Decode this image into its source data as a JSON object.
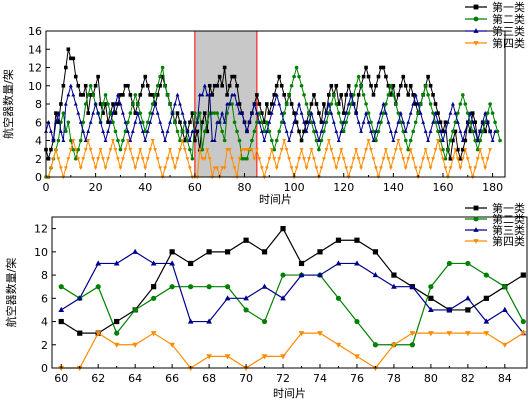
{
  "chart_data": [
    {
      "type": "line",
      "xlabel": "时间片",
      "ylabel": "航空器数量/架",
      "xlim": [
        0,
        185
      ],
      "ylim": [
        0,
        16
      ],
      "xticks": [
        0,
        20,
        40,
        60,
        80,
        100,
        120,
        140,
        160,
        180
      ],
      "yticks": [
        0,
        2,
        4,
        6,
        8,
        10,
        12,
        14,
        16
      ],
      "legend_position": "top-right",
      "highlight": {
        "x_range": [
          60,
          85
        ],
        "fill": "#c8c8c8",
        "edge": "#ff0000"
      },
      "x_start": 0,
      "series": [
        {
          "name": "第一类",
          "color": "#000000",
          "marker": "square",
          "values": [
            3,
            2,
            3,
            4,
            7,
            6,
            8,
            10,
            12,
            14,
            13,
            13,
            11,
            10,
            9,
            9,
            10,
            7,
            9,
            9,
            10,
            11,
            8,
            7,
            8,
            6,
            7,
            8,
            7,
            8,
            9,
            9,
            10,
            10,
            9,
            8,
            7,
            8,
            9,
            10,
            11,
            10,
            9,
            9,
            8,
            9,
            10,
            11,
            10,
            9,
            8,
            7,
            6,
            7,
            6,
            5,
            4,
            5,
            6,
            7,
            4,
            5,
            3,
            6,
            7,
            5,
            10,
            9,
            10,
            10,
            11,
            10,
            12,
            9,
            10,
            11,
            11,
            10,
            8,
            7,
            6,
            5,
            6,
            7,
            8,
            9,
            8,
            7,
            6,
            8,
            7,
            8,
            9,
            10,
            11,
            10,
            9,
            8,
            9,
            8,
            7,
            6,
            5,
            4,
            5,
            6,
            7,
            8,
            9,
            8,
            7,
            6,
            8,
            7,
            9,
            10,
            9,
            10,
            8,
            9,
            7,
            9,
            10,
            9,
            8,
            7,
            9,
            10,
            11,
            12,
            11,
            10,
            9,
            10,
            11,
            12,
            12,
            11,
            10,
            9,
            10,
            8,
            9,
            10,
            11,
            10,
            9,
            10,
            9,
            8,
            7,
            8,
            9,
            10,
            11,
            10,
            9,
            8,
            7,
            6,
            5,
            6,
            3,
            2,
            4,
            5,
            3,
            2,
            3,
            4,
            6,
            5,
            7,
            6,
            4,
            5,
            6,
            5,
            6,
            5
          ]
        },
        {
          "name": "第二类",
          "color": "#008000",
          "marker": "circle",
          "values": [
            0,
            0,
            1,
            2,
            3,
            4,
            6,
            7,
            5,
            6,
            4,
            3,
            2,
            3,
            4,
            6,
            8,
            9,
            10,
            9,
            8,
            7,
            6,
            8,
            9,
            8,
            7,
            6,
            5,
            4,
            3,
            4,
            5,
            6,
            7,
            8,
            9,
            8,
            7,
            6,
            5,
            6,
            7,
            8,
            9,
            10,
            11,
            12,
            10,
            9,
            8,
            7,
            6,
            5,
            4,
            5,
            6,
            4,
            3,
            2,
            7,
            6,
            7,
            3,
            5,
            6,
            7,
            7,
            7,
            7,
            6,
            5,
            4,
            7,
            8,
            8,
            6,
            5,
            4,
            2,
            2,
            2,
            3,
            4,
            5,
            6,
            7,
            6,
            5,
            6,
            5,
            4,
            3,
            4,
            5,
            6,
            7,
            8,
            9,
            10,
            11,
            12,
            11,
            10,
            9,
            8,
            7,
            6,
            5,
            4,
            3,
            4,
            5,
            6,
            7,
            8,
            9,
            8,
            7,
            6,
            5,
            6,
            7,
            8,
            9,
            10,
            11,
            10,
            9,
            8,
            7,
            6,
            5,
            4,
            5,
            6,
            7,
            8,
            9,
            10,
            9,
            8,
            7,
            6,
            5,
            4,
            3,
            4,
            5,
            6,
            7,
            8,
            9,
            10,
            9,
            8,
            7,
            6,
            5,
            4,
            3,
            2,
            3,
            4,
            5,
            6,
            7,
            8,
            9,
            8,
            7,
            6,
            5,
            4,
            3,
            4,
            5,
            6,
            7,
            8,
            7,
            6,
            5,
            4
          ]
        },
        {
          "name": "第三类",
          "color": "#00008b",
          "marker": "triangle-up",
          "values": [
            5,
            6,
            5,
            4,
            6,
            7,
            5,
            4,
            8,
            9,
            10,
            9,
            8,
            7,
            6,
            5,
            4,
            5,
            6,
            7,
            8,
            7,
            6,
            5,
            4,
            5,
            6,
            7,
            8,
            9,
            8,
            7,
            6,
            5,
            4,
            5,
            6,
            7,
            6,
            5,
            4,
            5,
            6,
            7,
            8,
            7,
            6,
            5,
            4,
            5,
            6,
            7,
            8,
            9,
            8,
            7,
            6,
            5,
            4,
            5,
            5,
            6,
            9,
            9,
            10,
            9,
            9,
            4,
            4,
            6,
            6,
            7,
            6,
            8,
            8,
            9,
            9,
            8,
            7,
            7,
            6,
            5,
            6,
            7,
            8,
            7,
            6,
            5,
            4,
            5,
            6,
            7,
            8,
            9,
            8,
            7,
            6,
            5,
            4,
            5,
            6,
            7,
            8,
            7,
            6,
            5,
            6,
            7,
            6,
            5,
            4,
            5,
            6,
            7,
            8,
            7,
            6,
            5,
            4,
            5,
            6,
            7,
            8,
            9,
            8,
            7,
            6,
            5,
            6,
            7,
            6,
            5,
            4,
            5,
            6,
            7,
            8,
            7,
            6,
            5,
            4,
            5,
            6,
            7,
            6,
            5,
            6,
            7,
            8,
            9,
            8,
            7,
            6,
            5,
            4,
            5,
            6,
            7,
            6,
            5,
            4,
            5,
            6,
            7,
            8,
            7,
            6,
            5,
            4,
            5,
            6,
            7,
            6,
            5,
            4,
            5,
            6,
            7,
            6,
            5,
            4,
            5
          ]
        },
        {
          "name": "第四类",
          "color": "#ff8c00",
          "marker": "triangle-down",
          "values": [
            0,
            0,
            1,
            2,
            3,
            2,
            1,
            0,
            1,
            2,
            3,
            4,
            3,
            2,
            1,
            2,
            3,
            4,
            3,
            2,
            1,
            2,
            3,
            2,
            1,
            2,
            3,
            4,
            3,
            2,
            1,
            2,
            3,
            4,
            3,
            2,
            1,
            2,
            3,
            2,
            1,
            2,
            3,
            4,
            3,
            2,
            1,
            0,
            1,
            2,
            3,
            2,
            1,
            2,
            3,
            4,
            3,
            2,
            1,
            0,
            0,
            0,
            3,
            2,
            2,
            3,
            2,
            0,
            1,
            1,
            0,
            1,
            1,
            3,
            3,
            2,
            1,
            0,
            2,
            3,
            3,
            3,
            3,
            3,
            2,
            3,
            2,
            1,
            0,
            1,
            2,
            3,
            2,
            1,
            2,
            3,
            4,
            3,
            2,
            1,
            0,
            1,
            2,
            3,
            2,
            1,
            2,
            3,
            2,
            1,
            0,
            1,
            2,
            3,
            4,
            3,
            2,
            1,
            2,
            3,
            2,
            1,
            0,
            1,
            2,
            3,
            2,
            1,
            2,
            3,
            4,
            3,
            2,
            1,
            0,
            1,
            2,
            3,
            2,
            1,
            2,
            3,
            4,
            3,
            2,
            1,
            2,
            3,
            2,
            1,
            0,
            1,
            2,
            3,
            2,
            1,
            2,
            3,
            4,
            3,
            2,
            1,
            0,
            1,
            2,
            3,
            2,
            1,
            2,
            3,
            2,
            1,
            0,
            1,
            2,
            3,
            2,
            1,
            2,
            3
          ]
        }
      ]
    },
    {
      "type": "line",
      "xlabel": "时间片",
      "ylabel": "航空器数量/架",
      "xlim": [
        59.5,
        85.2
      ],
      "ylim": [
        0,
        13
      ],
      "xticks": [
        60,
        62,
        64,
        66,
        68,
        70,
        72,
        74,
        76,
        78,
        80,
        82,
        84
      ],
      "yticks": [
        0,
        2,
        4,
        6,
        8,
        10,
        12
      ],
      "legend_position": "top-right",
      "x": [
        60,
        61,
        62,
        63,
        64,
        65,
        66,
        67,
        68,
        69,
        70,
        71,
        72,
        73,
        74,
        75,
        76,
        77,
        78,
        79,
        80,
        81,
        82,
        83,
        84,
        85
      ],
      "series": [
        {
          "name": "第一类",
          "color": "#000000",
          "marker": "square",
          "values": [
            4,
            3,
            3,
            4,
            5,
            7,
            10,
            9,
            10,
            10,
            11,
            10,
            12,
            9,
            10,
            11,
            11,
            10,
            8,
            7,
            6,
            5,
            5,
            6,
            7,
            8
          ]
        },
        {
          "name": "第二类",
          "color": "#008000",
          "marker": "circle",
          "values": [
            7,
            6,
            7,
            3,
            5,
            6,
            7,
            7,
            7,
            7,
            5,
            4,
            8,
            8,
            8,
            6,
            4,
            2,
            2,
            2,
            7,
            9,
            9,
            8,
            7,
            4
          ]
        },
        {
          "name": "第三类",
          "color": "#00008b",
          "marker": "triangle-up",
          "values": [
            5,
            6,
            9,
            9,
            10,
            9,
            9,
            4,
            4,
            6,
            6,
            7,
            6,
            8,
            8,
            9,
            9,
            8,
            7,
            7,
            5,
            5,
            6,
            4,
            5,
            3
          ]
        },
        {
          "name": "第四类",
          "color": "#ff8c00",
          "marker": "triangle-down",
          "values": [
            0,
            0,
            3,
            2,
            2,
            3,
            2,
            0,
            1,
            1,
            0,
            1,
            1,
            3,
            3,
            2,
            1,
            0,
            2,
            3,
            3,
            3,
            3,
            3,
            2,
            3
          ]
        }
      ]
    }
  ]
}
